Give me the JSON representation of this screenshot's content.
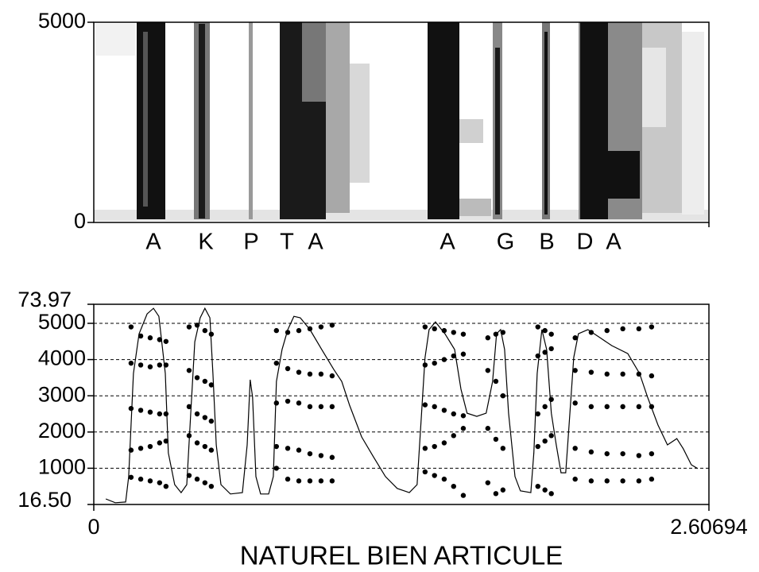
{
  "chart_data": [
    {
      "type": "spectrogram",
      "ylim": [
        0,
        5000
      ],
      "yticks": [
        0,
        5000
      ],
      "labels": [
        "A",
        "K",
        "P",
        "T",
        "A",
        "A",
        "G",
        "B",
        "D",
        "A"
      ]
    },
    {
      "type": "formant",
      "title": "NATUREL BIEN ARTICULE",
      "xlim": [
        0,
        2.60694
      ],
      "xticks": [
        0,
        2.60694
      ],
      "ylim": [
        0,
        5526
      ],
      "yticks": [
        1000,
        2000,
        3000,
        4000,
        5000
      ],
      "y2lim": [
        16.5,
        73.97
      ],
      "y2ticks": [
        {
          "value": 16.5,
          "label": "16.50"
        },
        73.97
      ],
      "grid": true,
      "series": [
        {
          "type": "line",
          "axis": "y2",
          "color": "#000000",
          "x": [
            0.051,
            0.091,
            0.135,
            0.148,
            0.168,
            0.192,
            0.226,
            0.253,
            0.276,
            0.303,
            0.316,
            0.343,
            0.37,
            0.394,
            0.411,
            0.428,
            0.451,
            0.471,
            0.492,
            0.505,
            0.519,
            0.539,
            0.579,
            0.63,
            0.65,
            0.663,
            0.673,
            0.687,
            0.707,
            0.741,
            0.761,
            0.774,
            0.798,
            0.822,
            0.848,
            0.875,
            0.916,
            0.966,
            1.017,
            1.051,
            1.084,
            1.135,
            1.185,
            1.236,
            1.286,
            1.337,
            1.37,
            1.387,
            1.404,
            1.421,
            1.448,
            1.488,
            1.529,
            1.556,
            1.582,
            1.623,
            1.663,
            1.69,
            1.707,
            1.724,
            1.741,
            1.758,
            1.785,
            1.808,
            1.852,
            1.865,
            1.879,
            1.899,
            1.919,
            1.939,
            1.96,
            1.98,
            2.0,
            2.013,
            2.034,
            2.054,
            2.094,
            2.145,
            2.195,
            2.263,
            2.313,
            2.347,
            2.391,
            2.431,
            2.471,
            2.498,
            2.532,
            2.559
          ],
          "values": [
            18.1,
            17.0,
            17.2,
            24.5,
            54.1,
            65.5,
            71.2,
            72.8,
            70.5,
            54.1,
            31.3,
            22.2,
            19.9,
            22.2,
            42.7,
            63.2,
            70.1,
            72.8,
            70.1,
            54.1,
            33.6,
            22.2,
            19.5,
            19.9,
            33.6,
            52.3,
            47.3,
            24.5,
            19.5,
            19.5,
            24.5,
            51.8,
            61.0,
            66.7,
            70.5,
            70.1,
            66.7,
            61.0,
            55.3,
            51.8,
            45.0,
            35.9,
            30.2,
            24.5,
            21.1,
            19.9,
            22.2,
            40.4,
            58.7,
            66.7,
            68.9,
            65.5,
            61.0,
            49.6,
            42.7,
            41.8,
            42.7,
            51.8,
            65.5,
            66.7,
            61.0,
            42.7,
            24.5,
            20.4,
            19.9,
            31.3,
            54.1,
            66.7,
            61.0,
            42.7,
            33.6,
            25.6,
            25.6,
            38.2,
            58.7,
            65.5,
            66.7,
            64.4,
            62.1,
            59.8,
            54.1,
            47.3,
            39.3,
            33.6,
            35.4,
            32.5,
            27.9,
            26.8
          ]
        },
        {
          "type": "scatter",
          "color": "#000000",
          "x": [
            0.158,
            0.199,
            0.239,
            0.279,
            0.306,
            0.158,
            0.199,
            0.239,
            0.279,
            0.306,
            0.158,
            0.199,
            0.239,
            0.279,
            0.306,
            0.158,
            0.199,
            0.239,
            0.279,
            0.306,
            0.158,
            0.199,
            0.239,
            0.279,
            0.306,
            0.404,
            0.438,
            0.471,
            0.498,
            0.404,
            0.438,
            0.471,
            0.498,
            0.404,
            0.438,
            0.471,
            0.498,
            0.404,
            0.438,
            0.471,
            0.498,
            0.404,
            0.438,
            0.471,
            0.498,
            0.774,
            0.822,
            0.869,
            0.916,
            0.963,
            1.01,
            0.774,
            0.822,
            0.869,
            0.916,
            0.963,
            1.01,
            0.774,
            0.822,
            0.869,
            0.916,
            0.963,
            1.01,
            0.774,
            0.822,
            0.869,
            0.916,
            0.963,
            1.01,
            0.774,
            0.822,
            0.869,
            0.916,
            0.963,
            1.01,
            1.404,
            1.444,
            1.485,
            1.525,
            1.566,
            1.404,
            1.444,
            1.485,
            1.525,
            1.566,
            1.404,
            1.444,
            1.485,
            1.525,
            1.566,
            1.404,
            1.444,
            1.485,
            1.525,
            1.566,
            1.404,
            1.444,
            1.485,
            1.525,
            1.566,
            1.67,
            1.704,
            1.734,
            1.67,
            1.704,
            1.734,
            1.67,
            1.704,
            1.734,
            1.67,
            1.704,
            1.734,
            1.882,
            1.912,
            1.939,
            1.882,
            1.912,
            1.939,
            1.882,
            1.912,
            1.939,
            1.882,
            1.912,
            1.939,
            1.882,
            1.912,
            1.939,
            2.04,
            2.108,
            2.175,
            2.242,
            2.31,
            2.364,
            2.04,
            2.108,
            2.175,
            2.242,
            2.31,
            2.364,
            2.04,
            2.108,
            2.175,
            2.242,
            2.31,
            2.364,
            2.04,
            2.108,
            2.175,
            2.242,
            2.31,
            2.364,
            2.04,
            2.108,
            2.175,
            2.242,
            2.31,
            2.364
          ],
          "values": [
            750,
            700,
            650,
            600,
            500,
            1500,
            1550,
            1600,
            1700,
            1750,
            2650,
            2600,
            2550,
            2500,
            2500,
            3900,
            3850,
            3800,
            3850,
            3850,
            4900,
            4650,
            4600,
            4550,
            4500,
            800,
            700,
            600,
            500,
            1900,
            1700,
            1600,
            1500,
            2700,
            2500,
            2400,
            2300,
            3700,
            3500,
            3400,
            3300,
            4900,
            4950,
            4800,
            4700,
            1000,
            700,
            650,
            650,
            650,
            650,
            1600,
            1550,
            1500,
            1400,
            1350,
            1300,
            2800,
            2850,
            2800,
            2700,
            2700,
            2700,
            3900,
            3750,
            3650,
            3600,
            3600,
            3550,
            4800,
            4750,
            4800,
            4850,
            4900,
            4950,
            900,
            800,
            700,
            500,
            250,
            1550,
            1600,
            1700,
            1900,
            2100,
            2750,
            2700,
            2600,
            2500,
            2450,
            3850,
            3900,
            4000,
            4100,
            4150,
            4900,
            4850,
            4800,
            4750,
            4700,
            600,
            300,
            400,
            2100,
            1800,
            1550,
            3700,
            3400,
            3000,
            4600,
            4700,
            4750,
            500,
            400,
            300,
            1600,
            1750,
            1900,
            2500,
            2700,
            2900,
            4100,
            4200,
            4300,
            4900,
            4800,
            4700,
            700,
            650,
            650,
            650,
            650,
            700,
            1550,
            1450,
            1400,
            1400,
            1350,
            1400,
            2800,
            2700,
            2700,
            2700,
            2700,
            2700,
            3700,
            3650,
            3600,
            3600,
            3600,
            3550,
            4600,
            4750,
            4800,
            4850,
            4850,
            4900
          ]
        }
      ]
    }
  ]
}
